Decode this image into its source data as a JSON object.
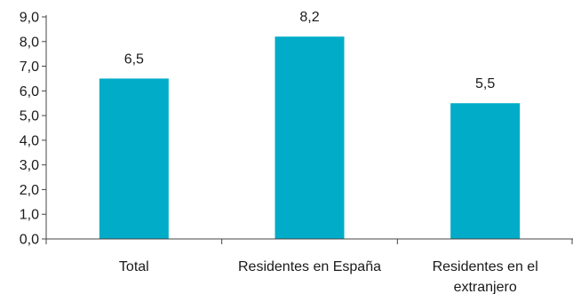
{
  "chart_data": {
    "type": "bar",
    "categories": [
      [
        "Total"
      ],
      [
        "Residentes en España"
      ],
      [
        "Residentes en el",
        "extranjero"
      ]
    ],
    "values": [
      6.5,
      8.2,
      5.5
    ],
    "value_labels": [
      "6,5",
      "8,2",
      "5,5"
    ],
    "y_ticks": [
      "0,0",
      "1,0",
      "2,0",
      "3,0",
      "4,0",
      "5,0",
      "6,0",
      "7,0",
      "8,0",
      "9,0"
    ],
    "ylim": [
      0,
      9
    ],
    "title": "",
    "xlabel": "",
    "ylabel": "",
    "grid": false,
    "legend": "none",
    "bar_color": "#00acc8"
  }
}
